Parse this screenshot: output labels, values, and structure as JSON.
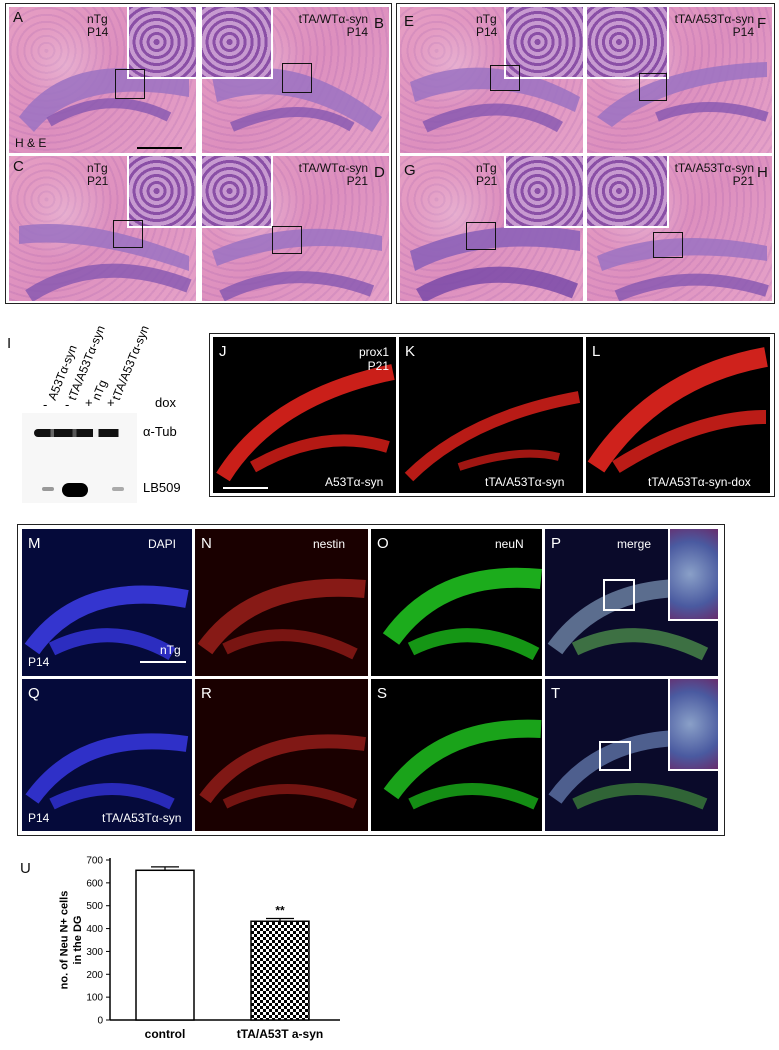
{
  "he_panels": {
    "A": {
      "letter": "A",
      "text": [
        "nTg",
        "P14"
      ],
      "stain": "H & E"
    },
    "B": {
      "letter": "B",
      "text": [
        "tTA/WTα-syn",
        "P14"
      ]
    },
    "C": {
      "letter": "C",
      "text": [
        "nTg",
        "P21"
      ]
    },
    "D": {
      "letter": "D",
      "text": [
        "tTA/WTα-syn",
        "P21"
      ]
    },
    "E": {
      "letter": "E",
      "text": [
        "nTg",
        "P14"
      ]
    },
    "F": {
      "letter": "F",
      "text": [
        "tTA/A53Tα-syn",
        "P14"
      ]
    },
    "G": {
      "letter": "G",
      "text": [
        "nTg",
        "P21"
      ]
    },
    "H": {
      "letter": "H",
      "text": [
        "tTA/A53Tα-syn",
        "P21"
      ]
    }
  },
  "western": {
    "letter": "I",
    "lanes": [
      "A53Tα-syn",
      "tTA/A53Tα-syn",
      "nTg",
      "tTA/A53Tα-syn"
    ],
    "dox": [
      "-",
      "-",
      "+",
      "+"
    ],
    "dox_label": "dox",
    "bands": [
      "α-Tub",
      "LB509"
    ]
  },
  "prox1_panels": {
    "J": {
      "letter": "J",
      "label": "A53Tα-syn",
      "marker": [
        "prox1",
        "P21"
      ]
    },
    "K": {
      "letter": "K",
      "label": "tTA/A53Tα-syn"
    },
    "L": {
      "letter": "L",
      "label": "tTA/A53Tα-syn-dox"
    }
  },
  "fluor_panels": {
    "M": {
      "letter": "M",
      "stain": "DAPI",
      "age": "P14",
      "genotype": "nTg"
    },
    "N": {
      "letter": "N",
      "stain": "nestin"
    },
    "O": {
      "letter": "O",
      "stain": "neuN"
    },
    "P": {
      "letter": "P",
      "stain": "merge"
    },
    "Q": {
      "letter": "Q",
      "age": "P14",
      "genotype": "tTA/A53Tα-syn"
    },
    "R": {
      "letter": "R"
    },
    "S": {
      "letter": "S"
    },
    "T": {
      "letter": "T"
    }
  },
  "chart_letter": "U",
  "chart_data": {
    "type": "bar",
    "categories": [
      "control",
      "tTA/A53T a-syn"
    ],
    "values": [
      655,
      432
    ],
    "errors": [
      15,
      12
    ],
    "ylabel": "no. of Neu N+ cells in the DG",
    "ylim": [
      0,
      700
    ],
    "yticks": [
      0,
      100,
      200,
      300,
      400,
      500,
      600,
      700
    ],
    "significance": "**",
    "colors": {
      "control": "#ffffff",
      "treated": "checkered"
    }
  }
}
